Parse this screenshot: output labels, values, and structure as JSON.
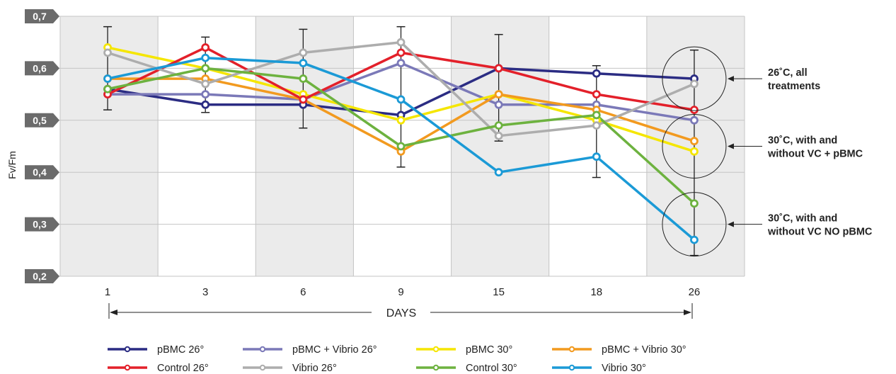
{
  "chart_data": {
    "type": "line",
    "ylabel": "Fv/Fm",
    "xlabel": "DAYS",
    "categories": [
      "1",
      "3",
      "6",
      "9",
      "15",
      "18",
      "26"
    ],
    "ylim": [
      0.2,
      0.7
    ],
    "yticks": [
      "0,2",
      "0,3",
      "0,4",
      "0,5",
      "0,6",
      "0,7"
    ],
    "series": [
      {
        "name": "pBMC 26°",
        "color": "#2b2c83",
        "values": [
          0.56,
          0.53,
          0.53,
          0.51,
          0.6,
          0.59,
          0.58
        ]
      },
      {
        "name": "pBMC + Vibrio 26°",
        "color": "#7b79b8",
        "values": [
          0.55,
          0.55,
          0.54,
          0.61,
          0.53,
          0.53,
          0.5
        ]
      },
      {
        "name": "pBMC 30°",
        "color": "#f5e600",
        "values": [
          0.64,
          0.6,
          0.55,
          0.5,
          0.55,
          0.5,
          0.44
        ]
      },
      {
        "name": "pBMC + Vibrio 30°",
        "color": "#f29a1f",
        "values": [
          0.58,
          0.58,
          0.54,
          0.44,
          0.55,
          0.52,
          0.46
        ]
      },
      {
        "name": "Control 26°",
        "color": "#e3202a",
        "values": [
          0.55,
          0.64,
          0.54,
          0.63,
          0.6,
          0.55,
          0.52
        ]
      },
      {
        "name": "Vibrio 26°",
        "color": "#adadad",
        "values": [
          0.63,
          0.57,
          0.63,
          0.65,
          0.47,
          0.49,
          0.57
        ]
      },
      {
        "name": "Control 30°",
        "color": "#6db23f",
        "values": [
          0.56,
          0.6,
          0.58,
          0.45,
          0.49,
          0.51,
          0.34
        ]
      },
      {
        "name": "Vibrio 30°",
        "color": "#1b9ad6",
        "values": [
          0.58,
          0.62,
          0.61,
          0.54,
          0.4,
          0.43,
          0.27
        ]
      }
    ],
    "error_bars": [
      [
        [
          0.52,
          0.68
        ],
        [
          0.515,
          0.66
        ],
        [
          0.485,
          0.675
        ],
        [
          0.41,
          0.68
        ],
        [
          0.46,
          0.665
        ],
        [
          0.39,
          0.605
        ],
        [
          0.24,
          0.635
        ]
      ]
    ],
    "annotations": [
      {
        "lines": [
          "26˚C, all",
          "treatments"
        ],
        "y": 0.58
      },
      {
        "lines": [
          "30˚C, with and",
          "without VC + pBMC"
        ],
        "y": 0.45
      },
      {
        "lines": [
          "30˚C, with and",
          "without VC NO pBMC"
        ],
        "y": 0.3
      }
    ],
    "legend_position": "bottom",
    "grid": true
  }
}
